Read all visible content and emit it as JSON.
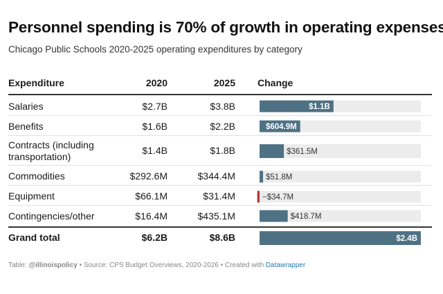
{
  "title": "Personnel spending is 70% of growth in operating expenses",
  "subtitle": "Chicago Public Schools 2020-2025 operating expenditures by category",
  "headers": {
    "expenditure": "Expenditure",
    "y2020": "2020",
    "y2025": "2025",
    "change": "Change"
  },
  "rows": [
    {
      "name_lines": [
        "Salaries"
      ],
      "v2020": "$2.7B",
      "v2025": "$3.8B"
    },
    {
      "name_lines": [
        "Benefits"
      ],
      "v2020": "$1.6B",
      "v2025": "$2.2B"
    },
    {
      "name_lines": [
        "Contracts (including",
        "transportation)"
      ],
      "v2020": "$1.4B",
      "v2025": "$1.8B"
    },
    {
      "name_lines": [
        "Commodities"
      ],
      "v2020": "$292.6M",
      "v2025": "$344.4M"
    },
    {
      "name_lines": [
        "Equipment"
      ],
      "v2020": "$66.1M",
      "v2025": "$31.4M"
    },
    {
      "name_lines": [
        "Contingencies/other"
      ],
      "v2020": "$16.4M",
      "v2025": "$435.1M"
    }
  ],
  "total": {
    "name": "Grand total",
    "v2020": "$6.2B",
    "v2025": "$8.6B"
  },
  "chart_data": {
    "type": "bar",
    "title": "Change",
    "categories": [
      "Salaries",
      "Benefits",
      "Contracts (including transportation)",
      "Commodities",
      "Equipment",
      "Contingencies/other",
      "Grand total"
    ],
    "values": [
      1100,
      604.9,
      361.5,
      51.8,
      -34.7,
      418.7,
      2400
    ],
    "value_labels": [
      "$1.1B",
      "$604.9M",
      "$361.5M",
      "$51.8M",
      "−$34.7M",
      "$418.7M",
      "$2.4B"
    ],
    "units": "millions of dollars",
    "row_scale_max": 2400,
    "total_scale_max": 2400,
    "colors": {
      "positive": "#4f7184",
      "negative": "#b33a3a",
      "track": "#ececec"
    }
  },
  "footer": {
    "prefix": "Table: ",
    "handle": "@illinoispolicy",
    "middle": " • Source: CPS Budget Overviews, 2020-2026 • Created with ",
    "tool": "Datawrapper"
  }
}
